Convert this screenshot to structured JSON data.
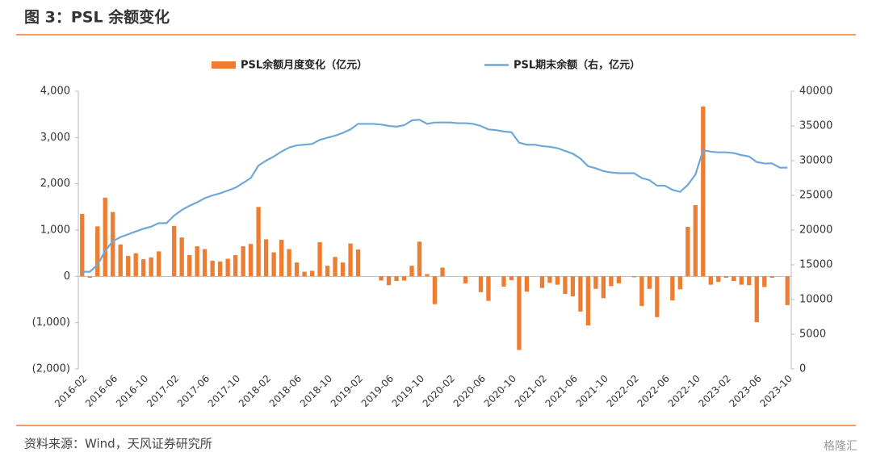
{
  "chart_data": {
    "type": "bar_line",
    "title": "图 3：PSL 余额变化",
    "source": "资料来源：Wind，天风证券研究所",
    "watermark": "格隆汇",
    "categories": [
      "2016-02",
      null,
      null,
      null,
      "2016-06",
      null,
      null,
      null,
      "2016-10",
      null,
      null,
      null,
      "2017-02",
      null,
      null,
      null,
      "2017-06",
      null,
      null,
      null,
      "2017-10",
      null,
      null,
      null,
      "2018-02",
      null,
      null,
      null,
      "2018-06",
      null,
      null,
      null,
      "2018-10",
      null,
      null,
      null,
      "2019-02",
      null,
      null,
      null,
      "2019-06",
      null,
      null,
      null,
      "2019-10",
      null,
      null,
      null,
      "2020-02",
      null,
      null,
      null,
      "2020-06",
      null,
      null,
      null,
      "2020-10",
      null,
      null,
      null,
      "2021-02",
      null,
      null,
      null,
      "2021-06",
      null,
      null,
      null,
      "2021-10",
      null,
      null,
      null,
      "2022-02",
      null,
      null,
      null,
      "2022-06",
      null,
      null,
      null,
      "2022-10",
      null,
      null,
      null,
      "2023-02",
      null,
      null,
      null,
      "2023-06",
      null,
      null,
      null,
      "2023-10"
    ],
    "series": [
      {
        "name": "PSL余额月度变化（亿元）",
        "color": "#ed7d31",
        "kind": "bar",
        "values": [
          1350,
          -30,
          1080,
          1700,
          1390,
          690,
          440,
          500,
          370,
          410,
          540,
          0,
          1090,
          840,
          460,
          650,
          590,
          340,
          320,
          380,
          460,
          650,
          700,
          1500,
          800,
          520,
          790,
          590,
          300,
          100,
          120,
          740,
          230,
          420,
          300,
          710,
          580,
          0,
          0,
          -90,
          -190,
          -100,
          -90,
          230,
          750,
          50,
          -600,
          190,
          0,
          0,
          -150,
          0,
          -340,
          -530,
          0,
          -220,
          -80,
          -1590,
          -330,
          0,
          -250,
          -140,
          -180,
          -380,
          -430,
          -760,
          -1060,
          -270,
          -470,
          -210,
          -150,
          0,
          -20,
          -640,
          -270,
          -880,
          0,
          -520,
          -280,
          1070,
          1540,
          3670,
          -180,
          -120,
          -30,
          -100,
          -180,
          -190,
          -990,
          -230,
          -30,
          0,
          -620
        ]
      },
      {
        "name": "PSL期末余额（右，亿元）",
        "color": "#6fa8d8",
        "kind": "line",
        "axis": "y2",
        "values": [
          14000,
          14000,
          15000,
          17000,
          18400,
          19000,
          19400,
          19800,
          20200,
          20500,
          21000,
          21000,
          22100,
          22900,
          23500,
          24000,
          24600,
          25000,
          25300,
          25700,
          26100,
          26800,
          27500,
          29300,
          30000,
          30600,
          31300,
          31900,
          32200,
          32300,
          32400,
          33000,
          33300,
          33600,
          34000,
          34500,
          35300,
          35300,
          35300,
          35200,
          35000,
          34900,
          35100,
          35800,
          35900,
          35300,
          35500,
          35500,
          35500,
          35400,
          35400,
          35300,
          35000,
          34500,
          34400,
          34200,
          34100,
          32600,
          32300,
          32300,
          32100,
          32000,
          31800,
          31400,
          31000,
          30300,
          29200,
          28900,
          28500,
          28300,
          28200,
          28200,
          28200,
          27500,
          27200,
          26400,
          26400,
          25800,
          25500,
          26500,
          28000,
          31500,
          31300,
          31200,
          31200,
          31100,
          30800,
          30600,
          29800,
          29600,
          29600,
          29000,
          29000
        ]
      }
    ],
    "ylim": [
      -2000,
      4000
    ],
    "yticks": [
      {
        "value": -2000,
        "label": "(2,000)"
      },
      {
        "value": -1000,
        "label": "(1,000)"
      },
      0,
      {
        "value": 1000,
        "label": "1,000"
      },
      {
        "value": 2000,
        "label": "2,000"
      },
      {
        "value": 3000,
        "label": "3,000"
      },
      {
        "value": 4000,
        "label": "4,000"
      }
    ],
    "y2lim": [
      0,
      40000
    ],
    "y2ticks": [
      0,
      5000,
      10000,
      15000,
      20000,
      25000,
      30000,
      35000,
      40000
    ],
    "grid": false
  }
}
